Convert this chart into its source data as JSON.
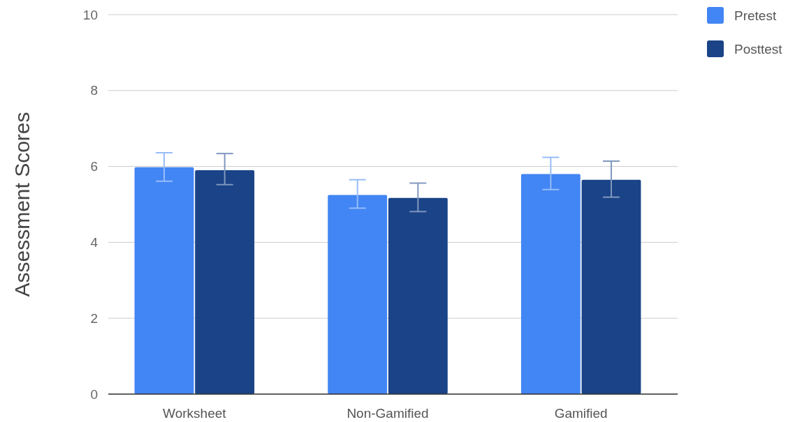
{
  "chart_data": {
    "type": "bar",
    "ylabel": "Assessment Scores",
    "categories": [
      "Worksheet",
      "Non-Gamified",
      "Gamified"
    ],
    "series": [
      {
        "name": "Pretest",
        "color": "#4285f4",
        "values": [
          5.98,
          5.25,
          5.8
        ],
        "errors": [
          [
            5.61,
            6.36
          ],
          [
            4.9,
            5.65
          ],
          [
            5.39,
            6.24
          ]
        ]
      },
      {
        "name": "Posttest",
        "color": "#1a4388",
        "values": [
          5.9,
          5.17,
          5.65
        ],
        "errors": [
          [
            5.52,
            6.34
          ],
          [
            4.81,
            5.56
          ],
          [
            5.19,
            6.14
          ]
        ]
      }
    ],
    "ylim": [
      0,
      10
    ],
    "yticks": [
      0,
      2,
      4,
      6,
      8,
      10
    ],
    "grid": "y",
    "legend": "top right"
  }
}
